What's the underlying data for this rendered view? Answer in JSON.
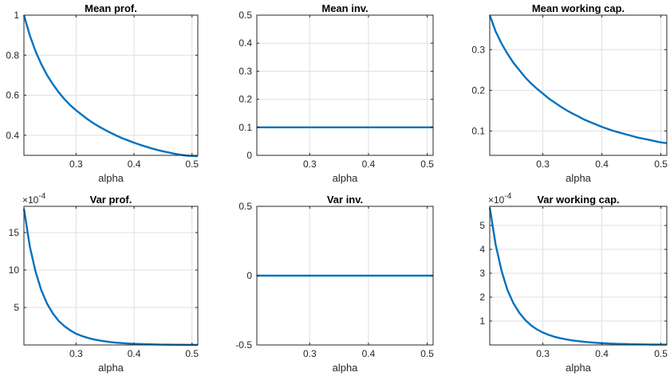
{
  "chart_data": [
    {
      "type": "line",
      "title": "Mean prof.",
      "xlabel": "alpha",
      "xlim": [
        0.21,
        0.51
      ],
      "ylim": [
        0.3,
        1.0
      ],
      "xticks": [
        0.3,
        0.4,
        0.5
      ],
      "xtick_labels": [
        "0.3",
        "0.4",
        "0.5"
      ],
      "yticks": [
        0.4,
        0.6,
        0.8,
        1.0
      ],
      "ytick_labels": [
        "0.4",
        "0.6",
        "0.8",
        "1"
      ],
      "grid": true,
      "color": "#0072BD",
      "series": [
        {
          "x": [
            0.21,
            0.22,
            0.23,
            0.24,
            0.25,
            0.26,
            0.27,
            0.28,
            0.29,
            0.3,
            0.31,
            0.32,
            0.33,
            0.34,
            0.35,
            0.36,
            0.37,
            0.38,
            0.39,
            0.4,
            0.41,
            0.42,
            0.43,
            0.44,
            0.45,
            0.46,
            0.47,
            0.48,
            0.49,
            0.5,
            0.51
          ],
          "y": [
            1.0,
            0.9,
            0.82,
            0.755,
            0.7,
            0.655,
            0.615,
            0.58,
            0.55,
            0.525,
            0.502,
            0.48,
            0.46,
            0.443,
            0.427,
            0.412,
            0.398,
            0.385,
            0.374,
            0.363,
            0.353,
            0.344,
            0.335,
            0.327,
            0.32,
            0.314,
            0.308,
            0.303,
            0.299,
            0.297,
            0.296
          ]
        }
      ]
    },
    {
      "type": "line",
      "title": "Mean inv.",
      "xlabel": "alpha",
      "xlim": [
        0.21,
        0.51
      ],
      "ylim": [
        0,
        0.5
      ],
      "xticks": [
        0.3,
        0.4,
        0.5
      ],
      "xtick_labels": [
        "0.3",
        "0.4",
        "0.5"
      ],
      "yticks": [
        0,
        0.1,
        0.2,
        0.3,
        0.4,
        0.5
      ],
      "ytick_labels": [
        "0",
        "0.1",
        "0.2",
        "0.3",
        "0.4",
        "0.5"
      ],
      "grid": true,
      "color": "#0072BD",
      "series": [
        {
          "x": [
            0.21,
            0.51
          ],
          "y": [
            0.1,
            0.1
          ]
        }
      ]
    },
    {
      "type": "line",
      "title": "Mean working cap.",
      "xlabel": "alpha",
      "xlim": [
        0.21,
        0.51
      ],
      "ylim": [
        0.04,
        0.385
      ],
      "xticks": [
        0.3,
        0.4,
        0.5
      ],
      "xtick_labels": [
        "0.3",
        "0.4",
        "0.5"
      ],
      "yticks": [
        0.1,
        0.2,
        0.3
      ],
      "ytick_labels": [
        "0.1",
        "0.2",
        "0.3"
      ],
      "grid": true,
      "color": "#0072BD",
      "series": [
        {
          "x": [
            0.21,
            0.22,
            0.23,
            0.24,
            0.25,
            0.26,
            0.27,
            0.28,
            0.29,
            0.3,
            0.31,
            0.32,
            0.33,
            0.34,
            0.35,
            0.36,
            0.37,
            0.38,
            0.39,
            0.4,
            0.41,
            0.42,
            0.43,
            0.44,
            0.45,
            0.46,
            0.47,
            0.48,
            0.49,
            0.5,
            0.51
          ],
          "y": [
            0.385,
            0.345,
            0.315,
            0.29,
            0.268,
            0.25,
            0.232,
            0.217,
            0.204,
            0.192,
            0.18,
            0.17,
            0.16,
            0.151,
            0.143,
            0.136,
            0.128,
            0.122,
            0.116,
            0.11,
            0.105,
            0.1,
            0.096,
            0.092,
            0.088,
            0.084,
            0.081,
            0.078,
            0.075,
            0.072,
            0.07
          ]
        }
      ]
    },
    {
      "type": "line",
      "title": "Var prof.",
      "xlabel": "alpha",
      "xlim": [
        0.21,
        0.51
      ],
      "ylim": [
        0,
        18.5
      ],
      "xticks": [
        0.3,
        0.4,
        0.5
      ],
      "xtick_labels": [
        "0.3",
        "0.4",
        "0.5"
      ],
      "yticks": [
        5,
        10,
        15
      ],
      "ytick_labels": [
        "5",
        "10",
        "15"
      ],
      "y_exponent": "-4",
      "grid": true,
      "color": "#0072BD",
      "series": [
        {
          "x": [
            0.21,
            0.22,
            0.23,
            0.24,
            0.25,
            0.26,
            0.27,
            0.28,
            0.29,
            0.3,
            0.31,
            0.32,
            0.33,
            0.34,
            0.35,
            0.36,
            0.37,
            0.38,
            0.39,
            0.4,
            0.41,
            0.42,
            0.43,
            0.44,
            0.45,
            0.46,
            0.47,
            0.48,
            0.49,
            0.5,
            0.51
          ],
          "y": [
            18.2,
            13.2,
            9.8,
            7.3,
            5.5,
            4.2,
            3.2,
            2.5,
            1.95,
            1.5,
            1.2,
            0.95,
            0.75,
            0.6,
            0.48,
            0.38,
            0.3,
            0.24,
            0.19,
            0.15,
            0.12,
            0.1,
            0.08,
            0.065,
            0.05,
            0.04,
            0.03,
            0.025,
            0.02,
            0.015,
            0.01
          ]
        }
      ]
    },
    {
      "type": "line",
      "title": "Var inv.",
      "xlabel": "alpha",
      "xlim": [
        0.21,
        0.51
      ],
      "ylim": [
        -0.5,
        0.5
      ],
      "xticks": [
        0.3,
        0.4,
        0.5
      ],
      "xtick_labels": [
        "0.3",
        "0.4",
        "0.5"
      ],
      "yticks": [
        -0.5,
        0,
        0.5
      ],
      "ytick_labels": [
        "-0.5",
        "0",
        "0.5"
      ],
      "grid": true,
      "color": "#0072BD",
      "series": [
        {
          "x": [
            0.21,
            0.51
          ],
          "y": [
            0,
            0
          ]
        }
      ]
    },
    {
      "type": "line",
      "title": "Var working cap.",
      "xlabel": "alpha",
      "xlim": [
        0.21,
        0.51
      ],
      "ylim": [
        0,
        5.8
      ],
      "xticks": [
        0.3,
        0.4,
        0.5
      ],
      "xtick_labels": [
        "0.3",
        "0.4",
        "0.5"
      ],
      "yticks": [
        1,
        2,
        3,
        4,
        5
      ],
      "ytick_labels": [
        "1",
        "2",
        "3",
        "4",
        "5"
      ],
      "y_exponent": "-4",
      "grid": true,
      "color": "#0072BD",
      "series": [
        {
          "x": [
            0.21,
            0.22,
            0.23,
            0.24,
            0.25,
            0.26,
            0.27,
            0.28,
            0.29,
            0.3,
            0.31,
            0.32,
            0.33,
            0.34,
            0.35,
            0.36,
            0.37,
            0.38,
            0.39,
            0.4,
            0.41,
            0.42,
            0.43,
            0.44,
            0.45,
            0.46,
            0.47,
            0.48,
            0.49,
            0.5,
            0.51
          ],
          "y": [
            5.75,
            4.2,
            3.1,
            2.3,
            1.75,
            1.35,
            1.05,
            0.82,
            0.65,
            0.52,
            0.42,
            0.34,
            0.28,
            0.23,
            0.19,
            0.16,
            0.13,
            0.11,
            0.09,
            0.075,
            0.063,
            0.053,
            0.045,
            0.038,
            0.032,
            0.027,
            0.023,
            0.02,
            0.017,
            0.015,
            0.013
          ]
        }
      ]
    }
  ]
}
